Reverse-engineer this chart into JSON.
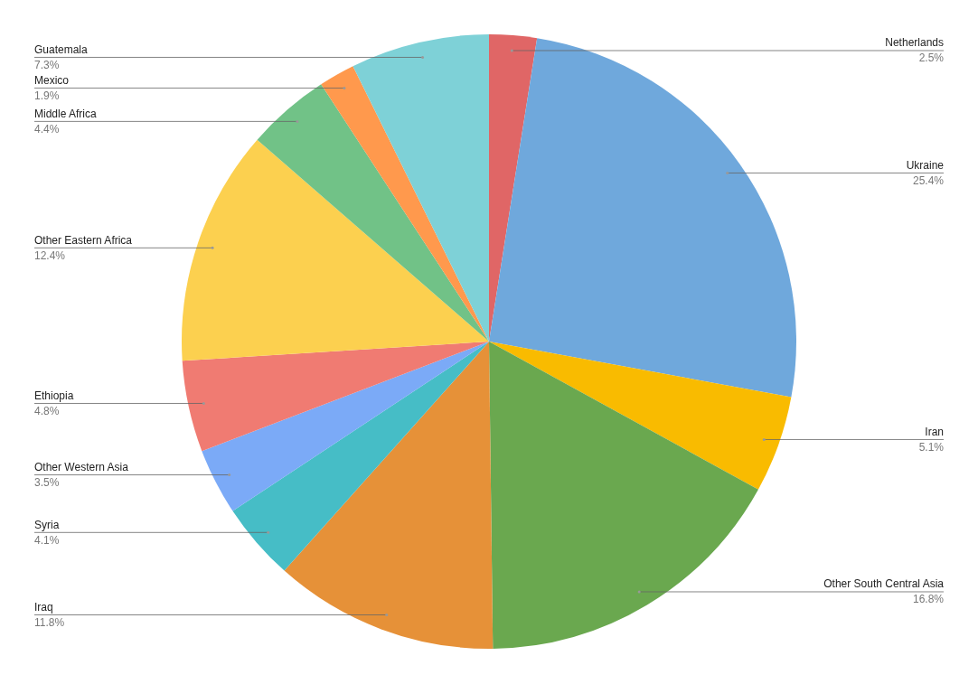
{
  "chart_data": {
    "type": "pie",
    "categories": [
      "Netherlands",
      "Ukraine",
      "Iran",
      "Other South Central Asia",
      "Iraq",
      "Syria",
      "Other Western Asia",
      "Ethiopia",
      "Other Eastern Africa",
      "Middle Africa",
      "Mexico",
      "Guatemala"
    ],
    "values": [
      2.5,
      25.4,
      5.1,
      16.8,
      11.8,
      4.1,
      3.5,
      4.8,
      12.4,
      4.4,
      1.9,
      7.3
    ],
    "value_labels": [
      "2.5%",
      "25.4%",
      "5.1%",
      "16.8%",
      "11.8%",
      "4.1%",
      "3.5%",
      "4.8%",
      "12.4%",
      "4.4%",
      "1.9%",
      "7.3%"
    ],
    "colors": [
      "#e06666",
      "#6fa8dc",
      "#f9bb00",
      "#6aa84f",
      "#e69138",
      "#46bdc6",
      "#7baaf7",
      "#f07b72",
      "#fcd04f",
      "#71c287",
      "#ff994d",
      "#7ed1d7"
    ]
  }
}
